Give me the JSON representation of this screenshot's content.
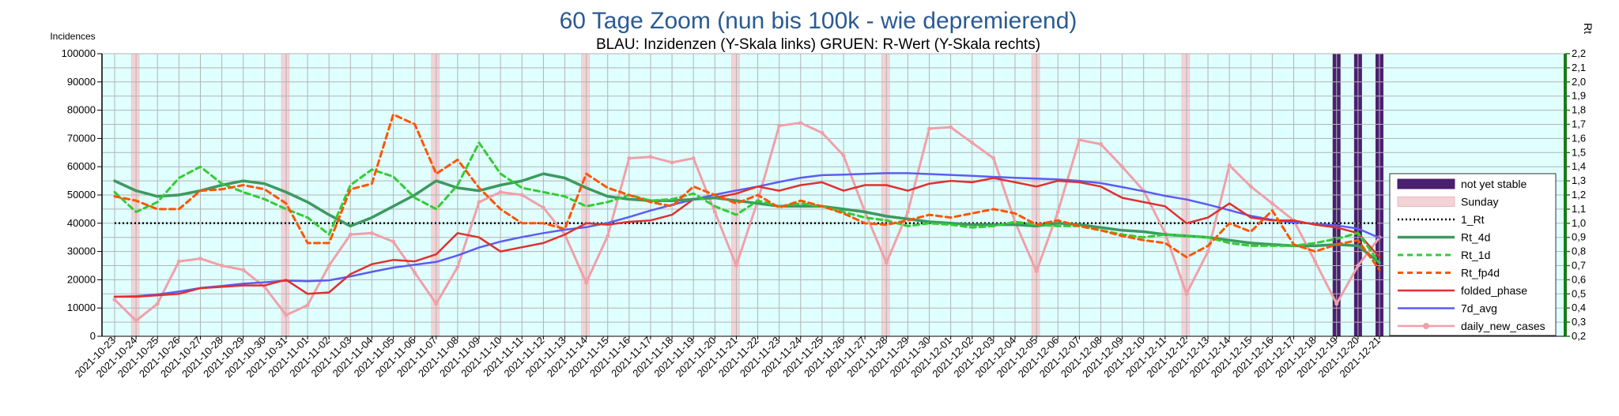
{
  "chart_data": {
    "type": "line",
    "title": "60 Tage Zoom  (nun bis 100k - wie depremierend)",
    "subtitle": "BLAU: Inzidenzen (Y-Skala links)     GRUEN: R-Wert (Y-Skala rechts)",
    "ylabel_left": "Incidences",
    "ylabel_right": "Rt",
    "ylim_left": [
      0,
      100000
    ],
    "ylim_right": [
      0.2,
      2.2
    ],
    "yticks_left": [
      "0",
      "10000",
      "20000",
      "30000",
      "40000",
      "50000",
      "60000",
      "70000",
      "80000",
      "90000",
      "100000"
    ],
    "yticks_right": [
      "0,2",
      "0,3",
      "0,4",
      "0,5",
      "0,6",
      "0,7",
      "0,8",
      "0,9",
      "1,0",
      "1,1",
      "1,2",
      "1,3",
      "1,4",
      "1,5",
      "1,6",
      "1,7",
      "1,8",
      "1,9",
      "2,0",
      "2,1",
      "2,2"
    ],
    "x_tick_labels": [
      "2021-10-23",
      "2021-10-24",
      "2021-10-25",
      "2021-10-26",
      "2021-10-27",
      "2021-10-28",
      "2021-10-29",
      "2021-10-30",
      "2021-10-31",
      "2021-11-01",
      "2021-11-02",
      "2021-11-03",
      "2021-11-04",
      "2021-11-05",
      "2021-11-06",
      "2021-11-07",
      "2021-11-08",
      "2021-11-09",
      "2021-11-10",
      "2021-11-11",
      "2021-11-12",
      "2021-11-13",
      "2021-11-14",
      "2021-11-15",
      "2021-11-16",
      "2021-11-17",
      "2021-11-18",
      "2021-11-19",
      "2021-11-20",
      "2021-11-21",
      "2021-11-22",
      "2021-11-23",
      "2021-11-24",
      "2021-11-25",
      "2021-11-26",
      "2021-11-27",
      "2021-11-28",
      "2021-11-29",
      "2021-11-30",
      "2021-12-01",
      "2021-12-02",
      "2021-12-03",
      "2021-12-04",
      "2021-12-05",
      "2021-12-06",
      "2021-12-07",
      "2021-12-08",
      "2021-12-09",
      "2021-12-10",
      "2021-12-11",
      "2021-12-12",
      "2021-12-13",
      "2021-12-14",
      "2021-12-15",
      "2021-12-16",
      "2021-12-17",
      "2021-12-18",
      "2021-12-19",
      "2021-12-20",
      "2021-12-21"
    ],
    "grid": true,
    "legend_position": "right",
    "sundays": [
      "2021-10-24",
      "2021-10-31",
      "2021-11-07",
      "2021-11-14",
      "2021-11-21",
      "2021-11-28",
      "2021-12-05",
      "2021-12-12"
    ],
    "not_yet_stable": [
      "2021-12-19",
      "2021-12-20",
      "2021-12-21"
    ],
    "reference_line": {
      "name": "1_Rt",
      "value": 1.0
    },
    "series": [
      {
        "name": "not yet stable",
        "color": "#4b1f6f",
        "style": "band"
      },
      {
        "name": "Sunday",
        "color": "#f2d3d6",
        "style": "band"
      },
      {
        "name": "1_Rt",
        "color": "#000000",
        "style": "dotted",
        "axis": "right"
      },
      {
        "name": "Rt_4d",
        "color": "#3d9960",
        "style": "solid",
        "axis": "right",
        "values": [
          1.3,
          1.23,
          1.19,
          1.2,
          1.23,
          1.27,
          1.3,
          1.28,
          1.22,
          1.15,
          1.06,
          0.98,
          1.04,
          1.12,
          1.2,
          1.3,
          1.25,
          1.23,
          1.27,
          1.3,
          1.35,
          1.32,
          1.25,
          1.19,
          1.17,
          1.16,
          1.16,
          1.17,
          1.18,
          1.16,
          1.14,
          1.12,
          1.12,
          1.12,
          1.1,
          1.08,
          1.05,
          1.03,
          1.01,
          1.0,
          0.99,
          0.99,
          0.99,
          0.98,
          1.0,
          0.99,
          0.97,
          0.95,
          0.94,
          0.92,
          0.91,
          0.9,
          0.88,
          0.86,
          0.85,
          0.84,
          0.84,
          0.85,
          0.84,
          0.72
        ]
      },
      {
        "name": "Rt_1d",
        "color": "#33cc33",
        "style": "dashed",
        "axis": "right",
        "values": [
          1.22,
          1.08,
          1.15,
          1.32,
          1.4,
          1.28,
          1.22,
          1.17,
          1.1,
          1.04,
          0.92,
          1.27,
          1.38,
          1.33,
          1.18,
          1.1,
          1.27,
          1.57,
          1.35,
          1.25,
          1.22,
          1.19,
          1.12,
          1.15,
          1.2,
          1.16,
          1.17,
          1.21,
          1.12,
          1.06,
          1.16,
          1.12,
          1.14,
          1.12,
          1.08,
          1.04,
          1.02,
          0.98,
          1.0,
          0.99,
          0.97,
          0.98,
          1.01,
          0.99,
          0.98,
          0.98,
          0.95,
          0.92,
          0.9,
          0.92,
          0.91,
          0.9,
          0.86,
          0.84,
          0.84,
          0.84,
          0.86,
          0.89,
          0.93,
          0.72
        ]
      },
      {
        "name": "Rt_fp4d",
        "color": "#ff5500",
        "style": "dashed",
        "axis": "right",
        "values": [
          1.19,
          1.16,
          1.1,
          1.1,
          1.23,
          1.24,
          1.27,
          1.24,
          1.14,
          0.86,
          0.86,
          1.24,
          1.28,
          1.77,
          1.7,
          1.35,
          1.45,
          1.25,
          1.1,
          1.0,
          1.0,
          0.96,
          1.35,
          1.25,
          1.2,
          1.15,
          1.12,
          1.26,
          1.2,
          1.14,
          1.2,
          1.11,
          1.16,
          1.12,
          1.07,
          1.0,
          0.99,
          1.02,
          1.06,
          1.04,
          1.07,
          1.1,
          1.07,
          0.99,
          1.02,
          0.98,
          0.95,
          0.91,
          0.88,
          0.86,
          0.76,
          0.84,
          1.0,
          0.94,
          1.09,
          0.85,
          0.8,
          0.85,
          0.88,
          0.67
        ]
      },
      {
        "name": "folded_phase",
        "color": "#e03030",
        "style": "solid",
        "axis": "left",
        "values": [
          14000,
          14000,
          14500,
          15000,
          17000,
          17500,
          18000,
          18000,
          20000,
          15000,
          15500,
          22000,
          25500,
          27000,
          26500,
          29000,
          36500,
          35000,
          30000,
          31500,
          33000,
          36000,
          40000,
          39500,
          40500,
          41000,
          43000,
          48500,
          49000,
          50500,
          53000,
          51500,
          53500,
          54500,
          51500,
          53500,
          53500,
          51500,
          54000,
          55000,
          54500,
          56000,
          54500,
          53000,
          55000,
          54500,
          53000,
          49000,
          47500,
          46000,
          40000,
          42000,
          47000,
          42000,
          41000,
          41000,
          39500,
          38500,
          36500,
          28000
        ]
      },
      {
        "name": "7d_avg",
        "color": "#5c5cf2",
        "style": "solid",
        "axis": "left",
        "values": [
          14000,
          14200,
          14800,
          15800,
          17100,
          17800,
          18600,
          19100,
          19700,
          19500,
          19800,
          21200,
          22800,
          24300,
          25300,
          26300,
          28600,
          31400,
          33500,
          35100,
          36500,
          37700,
          38600,
          40100,
          42200,
          44500,
          46500,
          48400,
          50100,
          51600,
          53000,
          54600,
          56100,
          57000,
          57200,
          57500,
          57700,
          57700,
          57400,
          57100,
          56800,
          56400,
          56100,
          55800,
          55500,
          55000,
          54200,
          52800,
          51300,
          49700,
          48400,
          46600,
          44600,
          42600,
          41200,
          40300,
          39800,
          39200,
          38100,
          34800
        ]
      },
      {
        "name": "daily_new_cases",
        "color": "#f0a0a8",
        "style": "line-marker",
        "axis": "left",
        "values": [
          13000,
          5500,
          11500,
          26500,
          27500,
          25000,
          23500,
          17500,
          7500,
          11000,
          25000,
          36000,
          36500,
          33500,
          22500,
          11500,
          24500,
          47500,
          51000,
          50000,
          45500,
          36000,
          19000,
          35500,
          63000,
          63500,
          61500,
          63000,
          44000,
          25000,
          48000,
          74500,
          75500,
          72000,
          64000,
          44000,
          26000,
          44000,
          73500,
          74000,
          68500,
          63000,
          40500,
          23000,
          44000,
          69500,
          68000,
          60000,
          51500,
          36500,
          15000,
          30000,
          60500,
          53000,
          47000,
          41000,
          26500,
          11500,
          25000,
          35000
        ]
      }
    ]
  }
}
